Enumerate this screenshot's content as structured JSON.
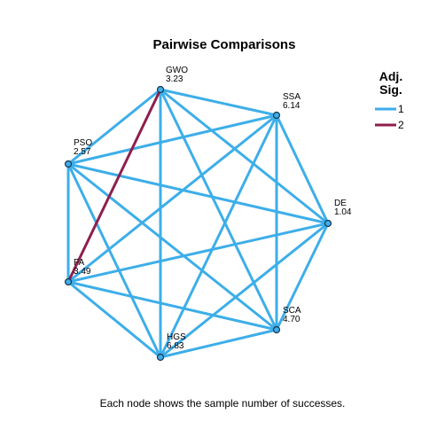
{
  "title": "Pairwise Comparisons",
  "footer": "Each node shows the sample number of successes.",
  "legend": {
    "title_line1": "Adj.",
    "title_line2": "Sig.",
    "items": [
      {
        "label": "1",
        "color": "#3DAEE9"
      },
      {
        "label": "2",
        "color": "#8E1F4C"
      }
    ]
  },
  "colors": {
    "edge_default": "#3DAEE9",
    "edge_highlight": "#8E1F4C",
    "node_fill": "#3DAEE9",
    "node_stroke": "#1A3550"
  },
  "nodes": [
    {
      "id": "GWO",
      "name": "GWO",
      "value": "3.23"
    },
    {
      "id": "SSA",
      "name": "SSA",
      "value": "6.14"
    },
    {
      "id": "DE",
      "name": "DE",
      "value": "1.04"
    },
    {
      "id": "SCA",
      "name": "SCA",
      "value": "4.70"
    },
    {
      "id": "HGS",
      "name": "HGS",
      "value": "6.83"
    },
    {
      "id": "FA",
      "name": "FA",
      "value": "3.49"
    },
    {
      "id": "PSO",
      "name": "PSO",
      "value": "2.57"
    }
  ],
  "edges": [
    {
      "from": "GWO",
      "to": "SSA",
      "group": 1
    },
    {
      "from": "GWO",
      "to": "DE",
      "group": 1
    },
    {
      "from": "GWO",
      "to": "SCA",
      "group": 1
    },
    {
      "from": "GWO",
      "to": "HGS",
      "group": 1
    },
    {
      "from": "GWO",
      "to": "FA",
      "group": 2
    },
    {
      "from": "GWO",
      "to": "PSO",
      "group": 1
    },
    {
      "from": "SSA",
      "to": "DE",
      "group": 1
    },
    {
      "from": "SSA",
      "to": "SCA",
      "group": 1
    },
    {
      "from": "SSA",
      "to": "HGS",
      "group": 1
    },
    {
      "from": "SSA",
      "to": "FA",
      "group": 1
    },
    {
      "from": "SSA",
      "to": "PSO",
      "group": 1
    },
    {
      "from": "DE",
      "to": "SCA",
      "group": 1
    },
    {
      "from": "DE",
      "to": "HGS",
      "group": 1
    },
    {
      "from": "DE",
      "to": "FA",
      "group": 1
    },
    {
      "from": "DE",
      "to": "PSO",
      "group": 1
    },
    {
      "from": "SCA",
      "to": "HGS",
      "group": 1
    },
    {
      "from": "SCA",
      "to": "FA",
      "group": 1
    },
    {
      "from": "SCA",
      "to": "PSO",
      "group": 1
    },
    {
      "from": "HGS",
      "to": "FA",
      "group": 1
    },
    {
      "from": "HGS",
      "to": "PSO",
      "group": 1
    },
    {
      "from": "FA",
      "to": "PSO",
      "group": 1
    }
  ]
}
